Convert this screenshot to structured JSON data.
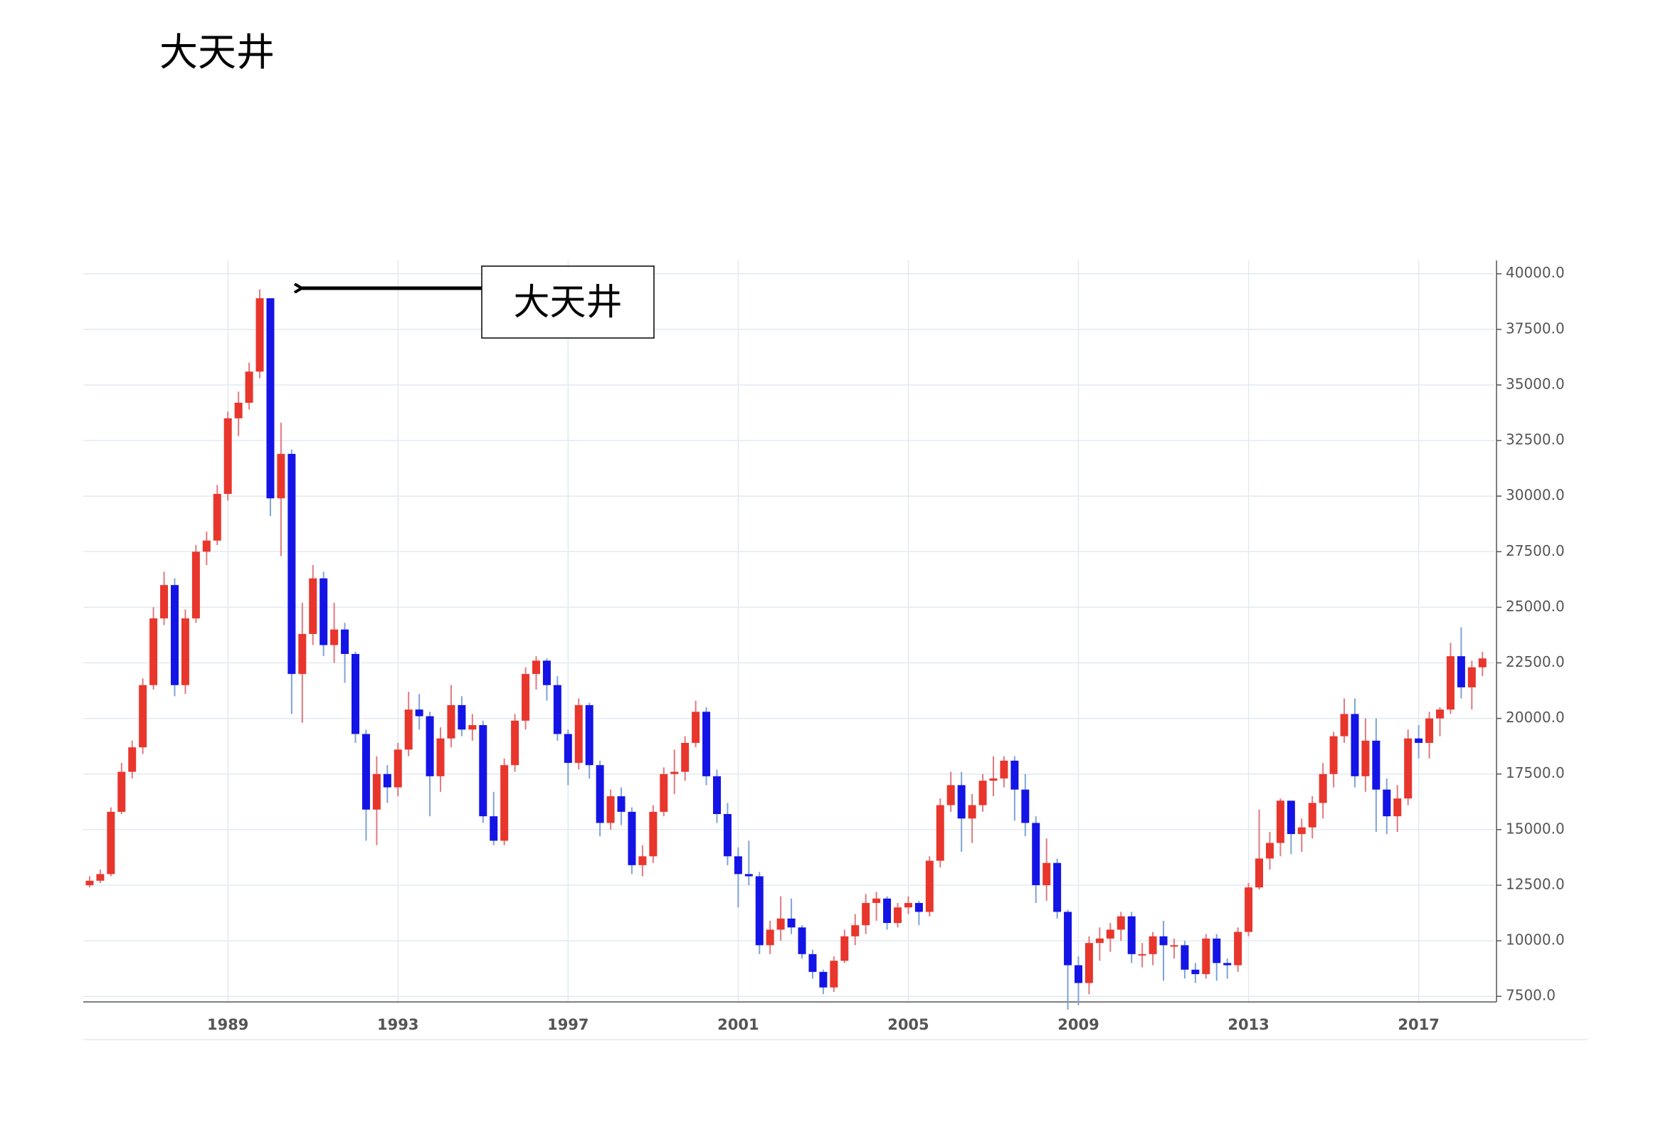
{
  "chart_data": {
    "type": "candlestick",
    "title": "大天井",
    "annotation": "大天井",
    "x": [
      1985.75,
      1986,
      1986.25,
      1986.5,
      1986.75,
      1987,
      1987.25,
      1987.5,
      1987.75,
      1988,
      1988.25,
      1988.5,
      1988.75,
      1989,
      1989.25,
      1989.5,
      1989.75,
      1990,
      1990.25,
      1990.5,
      1990.75,
      1991,
      1991.25,
      1991.5,
      1991.75,
      1992,
      1992.25,
      1992.5,
      1992.75,
      1993,
      1993.25,
      1993.5,
      1993.75,
      1994,
      1994.25,
      1994.5,
      1994.75,
      1995,
      1995.25,
      1995.5,
      1995.75,
      1996,
      1996.25,
      1996.5,
      1996.75,
      1997,
      1997.25,
      1997.5,
      1997.75,
      1998,
      1998.25,
      1998.5,
      1998.75,
      1999,
      1999.25,
      1999.5,
      1999.75,
      2000,
      2000.25,
      2000.5,
      2000.75,
      2001,
      2001.25,
      2001.5,
      2001.75,
      2002,
      2002.25,
      2002.5,
      2002.75,
      2003,
      2003.25,
      2003.5,
      2003.75,
      2004,
      2004.25,
      2004.5,
      2004.75,
      2005,
      2005.25,
      2005.5,
      2005.75,
      2006,
      2006.25,
      2006.5,
      2006.75,
      2007,
      2007.25,
      2007.5,
      2007.75,
      2008,
      2008.25,
      2008.5,
      2008.75,
      2009,
      2009.25,
      2009.5,
      2009.75,
      2010,
      2010.25,
      2010.5,
      2010.75,
      2011,
      2011.25,
      2011.5,
      2011.75,
      2012,
      2012.25,
      2012.5,
      2012.75,
      2013,
      2013.25,
      2013.5,
      2013.75,
      2014,
      2014.25,
      2014.5,
      2014.75,
      2015,
      2015.25,
      2015.5,
      2015.75,
      2016,
      2016.25,
      2016.5,
      2016.75,
      2017,
      2017.25,
      2017.5,
      2017.75,
      2018,
      2018.25,
      2018.5
    ],
    "open": [
      12500,
      12700,
      13000,
      15800,
      17600,
      18700,
      21500,
      24500,
      26000,
      21500,
      24500,
      27500,
      28000,
      30100,
      33500,
      34200,
      35600,
      38900,
      29900,
      31900,
      22000,
      23800,
      26300,
      23300,
      24000,
      22900,
      19300,
      15900,
      17500,
      16900,
      18600,
      20400,
      20100,
      17400,
      19100,
      20600,
      19500,
      19700,
      15600,
      14500,
      17900,
      19900,
      22000,
      22600,
      21500,
      19300,
      18000,
      20600,
      17900,
      15300,
      16500,
      15800,
      13400,
      13800,
      15800,
      17500,
      17600,
      18900,
      20300,
      17400,
      15700,
      13800,
      13000,
      12900,
      9800,
      10500,
      11000,
      10600,
      9400,
      8600,
      7900,
      9100,
      10200,
      10700,
      11700,
      11900,
      10800,
      11500,
      11700,
      11300,
      13600,
      16100,
      17000,
      15500,
      16100,
      17200,
      17300,
      18100,
      16800,
      15300,
      12500,
      13500,
      11300,
      8900,
      8100,
      9900,
      10100,
      10500,
      11100,
      9400,
      9400,
      10200,
      9800,
      9800,
      8700,
      8500,
      10100,
      9000,
      8900,
      10400,
      12400,
      13700,
      14400,
      16300,
      14800,
      15100,
      16200,
      17500,
      19200,
      20200,
      17400,
      19000,
      16800,
      15600,
      16400,
      19100,
      18900,
      20000,
      20400,
      22800,
      21400,
      22300
    ],
    "high": [
      12900,
      13200,
      16000,
      18000,
      19000,
      21800,
      25000,
      26600,
      26300,
      24900,
      27800,
      28400,
      30500,
      33800,
      34700,
      36000,
      39300,
      38900,
      33300,
      32100,
      25200,
      26900,
      26600,
      25200,
      24300,
      23000,
      19500,
      18300,
      17900,
      18900,
      21200,
      21100,
      20300,
      19600,
      21500,
      21000,
      20200,
      19900,
      16700,
      18200,
      20200,
      22300,
      22800,
      22700,
      21900,
      19500,
      20900,
      20700,
      18100,
      16800,
      16900,
      16000,
      14300,
      16100,
      17800,
      18600,
      19200,
      20800,
      20500,
      17700,
      16200,
      14200,
      14500,
      13100,
      10900,
      12000,
      11900,
      10700,
      9600,
      8700,
      9300,
      10500,
      11200,
      12100,
      12200,
      12000,
      11700,
      12000,
      11800,
      13800,
      16400,
      17600,
      17600,
      16600,
      17500,
      18300,
      18300,
      18300,
      17500,
      15600,
      14600,
      13700,
      11400,
      9300,
      10200,
      10600,
      10800,
      11300,
      11300,
      9900,
      10400,
      10900,
      10100,
      10000,
      9000,
      10300,
      10300,
      9200,
      10600,
      12600,
      15900,
      14900,
      16400,
      16300,
      15500,
      16500,
      18000,
      19400,
      20900,
      20900,
      20000,
      20000,
      17300,
      17000,
      19500,
      19700,
      20300,
      20500,
      23400,
      24100,
      22600,
      23000
    ],
    "low": [
      12400,
      12600,
      12900,
      15700,
      17300,
      18400,
      21300,
      24200,
      21000,
      21100,
      24300,
      26900,
      27800,
      29800,
      32700,
      33900,
      35300,
      29100,
      27300,
      20200,
      19800,
      23300,
      22800,
      22500,
      21600,
      18900,
      14500,
      14300,
      16200,
      16500,
      18300,
      19500,
      15600,
      16700,
      18700,
      19200,
      19000,
      15300,
      14300,
      14300,
      17600,
      19500,
      21300,
      20800,
      19000,
      17000,
      17700,
      17300,
      14700,
      15000,
      15200,
      13000,
      12900,
      13500,
      15600,
      16600,
      17200,
      18700,
      17000,
      15300,
      13400,
      11500,
      12500,
      9400,
      9400,
      10000,
      10300,
      9200,
      8300,
      7600,
      7700,
      9000,
      9800,
      10300,
      10900,
      10500,
      10600,
      11200,
      10700,
      11100,
      13300,
      15800,
      14000,
      14400,
      15800,
      16500,
      16900,
      15400,
      14700,
      11700,
      11800,
      11000,
      6900,
      7100,
      7600,
      9100,
      9500,
      10000,
      9000,
      8800,
      8900,
      8200,
      9200,
      8300,
      8100,
      8300,
      8200,
      8300,
      8600,
      10200,
      12300,
      13200,
      13800,
      13900,
      14000,
      14600,
      15500,
      16900,
      18900,
      16900,
      16700,
      14900,
      14800,
      14900,
      16100,
      18200,
      18200,
      19200,
      20200,
      20900,
      20400,
      21900
    ],
    "close": [
      12700,
      13000,
      15800,
      17600,
      18700,
      21500,
      24500,
      26000,
      21500,
      24500,
      27500,
      28000,
      30100,
      33500,
      34200,
      35600,
      38900,
      29900,
      31900,
      22000,
      23800,
      26300,
      23300,
      24000,
      22900,
      19300,
      15900,
      17500,
      16900,
      18600,
      20400,
      20100,
      17400,
      19100,
      20600,
      19500,
      19700,
      15600,
      14500,
      17900,
      19900,
      22000,
      22600,
      21500,
      19300,
      18000,
      20600,
      17900,
      15300,
      16500,
      15800,
      13400,
      13800,
      15800,
      17500,
      17600,
      18900,
      20300,
      17400,
      15700,
      13800,
      13000,
      12900,
      9800,
      10500,
      11000,
      10600,
      9400,
      8600,
      7900,
      9100,
      10200,
      10700,
      11700,
      11900,
      10800,
      11500,
      11700,
      11300,
      13600,
      16100,
      17000,
      15500,
      16100,
      17200,
      17300,
      18100,
      16800,
      15300,
      12500,
      13500,
      11300,
      8900,
      8100,
      9900,
      10100,
      10500,
      11100,
      9400,
      9400,
      10200,
      9800,
      9800,
      8700,
      8500,
      10100,
      9000,
      8900,
      10400,
      12400,
      13700,
      14400,
      16300,
      14800,
      15100,
      16200,
      17500,
      19200,
      20200,
      17400,
      19000,
      16800,
      15600,
      16400,
      19100,
      18900,
      20000,
      20400,
      22800,
      21400,
      22300,
      22700
    ],
    "up_color": "#e8362d",
    "down_color": "#1414e6",
    "up_wick_color": "#e07a80",
    "down_wick_color": "#7fa3d8",
    "xlim": [
      1985.6,
      2018.78
    ],
    "xticks": [
      1989,
      1993,
      1997,
      2001,
      2005,
      2009,
      2013,
      2017
    ],
    "ylim": [
      7250,
      40600
    ],
    "yticks": [
      {
        "value": 7500,
        "label": "7500.0"
      },
      {
        "value": 10000,
        "label": "10000.0"
      },
      {
        "value": 12500,
        "label": "12500.0"
      },
      {
        "value": 15000,
        "label": "15000.0"
      },
      {
        "value": 17500,
        "label": "17500.0"
      },
      {
        "value": 20000,
        "label": "20000.0"
      },
      {
        "value": 22500,
        "label": "22500.0"
      },
      {
        "value": 25000,
        "label": "25000.0"
      },
      {
        "value": 27500,
        "label": "27500.0"
      },
      {
        "value": 30000,
        "label": "30000.0"
      },
      {
        "value": 32500,
        "label": "32500.0"
      },
      {
        "value": 35000,
        "label": "35000.0"
      },
      {
        "value": 37500,
        "label": "37500.0"
      },
      {
        "value": 40000,
        "label": "40000.0"
      }
    ],
    "grid": true
  }
}
